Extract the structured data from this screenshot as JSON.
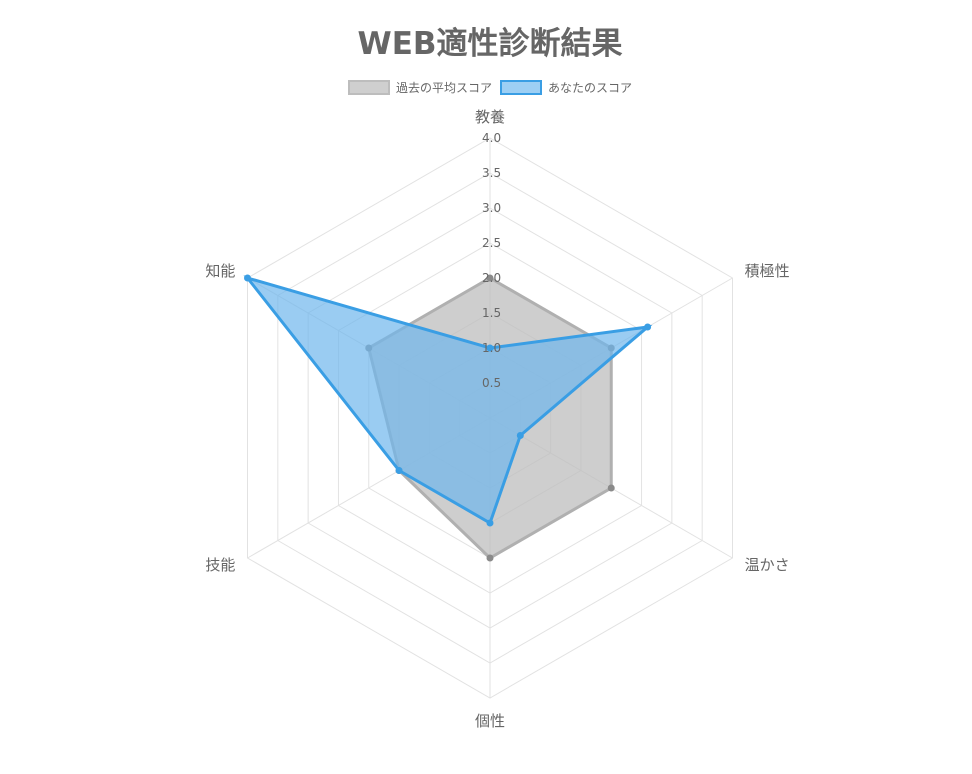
{
  "chart_data": {
    "type": "radar",
    "title": "WEB適性診断結果",
    "categories": [
      "教養",
      "積極性",
      "温かさ",
      "個性",
      "技能",
      "知能"
    ],
    "series": [
      {
        "name": "過去の平均スコア",
        "values": [
          2.0,
          2.0,
          2.0,
          2.0,
          1.5,
          2.0
        ],
        "fill": "#bdbdbd",
        "stroke": "#b0b0b0",
        "point": "#8a8a8a",
        "fill_opacity": 0.75
      },
      {
        "name": "あなたのスコア",
        "values": [
          1.0,
          2.6,
          0.5,
          1.5,
          1.5,
          4.0
        ],
        "fill": "#6fb6ec",
        "stroke": "#3a9ee4",
        "point": "#3a9ee4",
        "fill_opacity": 0.7
      }
    ],
    "r_min": 0,
    "r_max": 4.0,
    "ticks": [
      "0.5",
      "1.0",
      "1.5",
      "2.0",
      "2.5",
      "3.0",
      "3.5",
      "4.0"
    ],
    "tick_values": [
      0.5,
      1.0,
      1.5,
      2.0,
      2.5,
      3.0,
      3.5,
      4.0
    ],
    "grid_color": "#e2e2e2",
    "legend_position": "top"
  }
}
